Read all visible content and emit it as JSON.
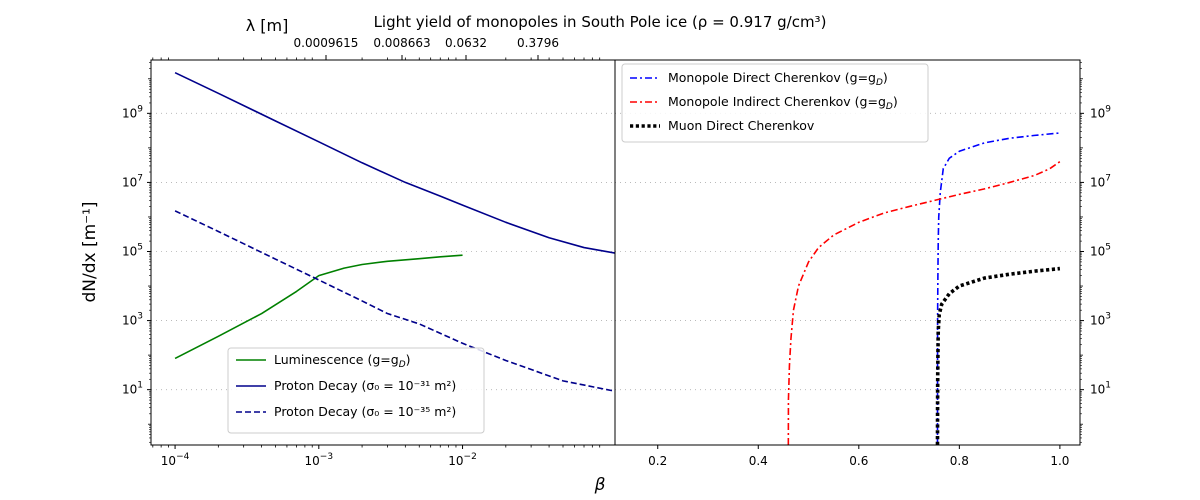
{
  "chart_data": {
    "type": "line",
    "title": "Light yield of monopoles in South Pole ice (ρ = 0.917 g/cm³)",
    "xlabel": "β",
    "ylabel": "dN/dx [m⁻¹]",
    "top_axis_label": "λ [m]",
    "top_axis_ticks": [
      "0.0009615",
      "0.008663",
      "0.0632",
      "0.3796"
    ],
    "yscale": "log",
    "grid": "y-dotted",
    "panels": [
      {
        "id": "left",
        "xscale": "log",
        "xlim": [
          6.8e-05,
          0.115
        ],
        "ylim": [
          0.25,
          35000000000.0
        ],
        "xticks": [
          {
            "v": 0.0001,
            "base": "10",
            "exp": "−4"
          },
          {
            "v": 0.001,
            "base": "10",
            "exp": "−3"
          },
          {
            "v": 0.01,
            "base": "10",
            "exp": "−2"
          }
        ],
        "yticks": [
          {
            "v": 10,
            "base": "10",
            "exp": "1"
          },
          {
            "v": 1000,
            "base": "10",
            "exp": "3"
          },
          {
            "v": 100000,
            "base": "10",
            "exp": "5"
          },
          {
            "v": 10000000,
            "base": "10",
            "exp": "7"
          },
          {
            "v": 1000000000,
            "base": "10",
            "exp": "9"
          }
        ],
        "legend_position": "lower-center",
        "series": [
          {
            "name": "Luminescence (g=g_D)",
            "color": "#008000",
            "style": "solid",
            "x": [
              0.0001,
              0.0002,
              0.0004,
              0.0007,
              0.001,
              0.0015,
              0.002,
              0.003,
              0.005,
              0.007,
              0.01
            ],
            "y": [
              80,
              350,
              1600,
              7000,
              20000,
              33000,
              42000,
              52000,
              62000,
              70000,
              78000
            ]
          },
          {
            "name": "Proton Decay (σ₀ = 10⁻³¹ m²)",
            "color": "#00008b",
            "style": "solid",
            "x": [
              0.0001,
              0.0002,
              0.0005,
              0.001,
              0.002,
              0.004,
              0.007,
              0.01,
              0.02,
              0.04,
              0.07,
              0.115
            ],
            "y": [
              15000000000.0,
              3800000000.0,
              600000000.0,
              150000000.0,
              37000000.0,
              10000000.0,
              4000000.0,
              2200000.0,
              700000.0,
              250000.0,
              130000.0,
              90000.0
            ]
          },
          {
            "name": "Proton Decay (σ₀ = 10⁻³⁵ m²)",
            "color": "#00008b",
            "style": "dashed",
            "x": [
              0.0001,
              0.0002,
              0.0005,
              0.001,
              0.002,
              0.003,
              0.005,
              0.01,
              0.02,
              0.05,
              0.115
            ],
            "y": [
              1500000.0,
              380000.0,
              60000.0,
              15000.0,
              3700.0,
              1600.0,
              800,
              220,
              70,
              18,
              9
            ]
          }
        ]
      },
      {
        "id": "right",
        "xscale": "linear",
        "xlim": [
          0.115,
          1.04
        ],
        "ylim": [
          0.25,
          35000000000.0
        ],
        "xticks": [
          {
            "v": 0.2,
            "t": "0.2"
          },
          {
            "v": 0.4,
            "t": "0.4"
          },
          {
            "v": 0.6,
            "t": "0.6"
          },
          {
            "v": 0.8,
            "t": "0.8"
          },
          {
            "v": 1.0,
            "t": "1.0"
          }
        ],
        "yticks": [
          {
            "v": 10,
            "base": "10",
            "exp": "1"
          },
          {
            "v": 1000,
            "base": "10",
            "exp": "3"
          },
          {
            "v": 100000,
            "base": "10",
            "exp": "5"
          },
          {
            "v": 10000000,
            "base": "10",
            "exp": "7"
          },
          {
            "v": 1000000000,
            "base": "10",
            "exp": "9"
          }
        ],
        "legend_position": "upper-left",
        "series": [
          {
            "name": "Monopole Direct Cherenkov (g=g_D)",
            "color": "#0000ff",
            "style": "dashdot",
            "x": [
              0.7565,
              0.7567,
              0.757,
              0.7575,
              0.758,
              0.759,
              0.762,
              0.768,
              0.78,
              0.8,
              0.85,
              0.9,
              0.95,
              1.0
            ],
            "y": [
              0.25,
              1000,
              5000,
              40000,
              200000.0,
              1000000.0,
              5000000.0,
              25000000.0,
              50000000.0,
              80000000.0,
              140000000.0,
              190000000.0,
              230000000.0,
              270000000.0
            ]
          },
          {
            "name": "Monopole Indirect Cherenkov (g=g_D)",
            "color": "#ff0000",
            "style": "dashdot",
            "x": [
              0.4598,
              0.46,
              0.462,
              0.465,
              0.47,
              0.48,
              0.5,
              0.52,
              0.55,
              0.6,
              0.65,
              0.7,
              0.75,
              0.8,
              0.85,
              0.9,
              0.95,
              0.98,
              1.0
            ],
            "y": [
              0.25,
              5,
              50,
              300,
              2000,
              10000,
              50000,
              130000.0,
              300000.0,
              700000.0,
              1300000.0,
              2000000.0,
              3000000.0,
              4500000.0,
              6500000.0,
              10000000.0,
              16000000.0,
              25000000.0,
              40000000.0
            ]
          },
          {
            "name": "Muon Direct Cherenkov",
            "color": "#000000",
            "style": "dotted",
            "x": [
              0.7565,
              0.7567,
              0.757,
              0.7575,
              0.758,
              0.76,
              0.765,
              0.78,
              0.8,
              0.85,
              0.9,
              0.95,
              1.0
            ],
            "y": [
              0.25,
              4,
              30,
              150,
              500,
              1500,
              3000,
              6000,
              10000,
              17000,
              22000,
              27000,
              32000
            ]
          }
        ]
      }
    ]
  }
}
